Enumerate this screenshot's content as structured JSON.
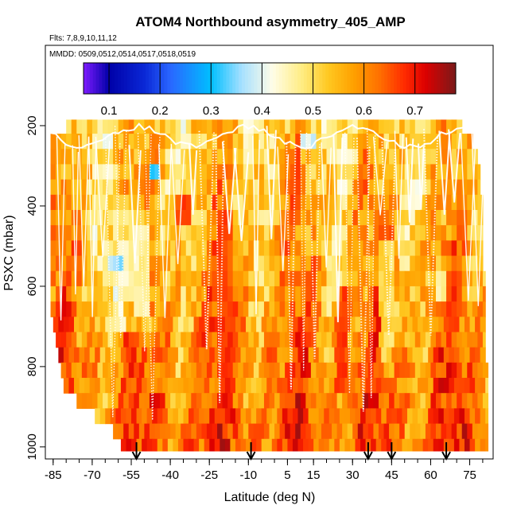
{
  "chart_data": {
    "type": "heatmap",
    "title": "ATOM4 Northbound asymmetry_405_AMP",
    "subtitle_flights": "Flts: 7,8,9,10,11,12",
    "subtitle_dates": "MMDD: 0509,0512,0514,0517,0518,0519",
    "xlabel": "Latitude (deg N)",
    "ylabel": "PSXC (mbar)",
    "xlim": [
      -88,
      84
    ],
    "ylim": [
      1030,
      0
    ],
    "x_ticks": [
      -85,
      -70,
      -55,
      -40,
      -25,
      -10,
      5,
      15,
      30,
      45,
      60,
      75
    ],
    "x_tick_labels": [
      "-85",
      "-70",
      "-55",
      "-40",
      "-25",
      "-10",
      "5",
      "15",
      "30",
      "45",
      "60",
      "75"
    ],
    "x_minor_tick_step": 5,
    "y_ticks": [
      200,
      400,
      600,
      800,
      1000
    ],
    "y_tick_labels": [
      "200",
      "400",
      "600",
      "800",
      "1000"
    ],
    "colorbar": {
      "range": [
        0.05,
        0.78
      ],
      "ticks": [
        0.1,
        0.2,
        0.3,
        0.4,
        0.5,
        0.6,
        0.7
      ],
      "tick_labels": [
        "0.1",
        "0.2",
        "0.3",
        "0.4",
        "0.5",
        "0.6",
        "0.7"
      ],
      "stops": [
        {
          "v": 0.05,
          "c": "#7f1cff"
        },
        {
          "v": 0.1,
          "c": "#0000a8"
        },
        {
          "v": 0.17,
          "c": "#0a28d6"
        },
        {
          "v": 0.22,
          "c": "#2a66ff"
        },
        {
          "v": 0.3,
          "c": "#00bfff"
        },
        {
          "v": 0.36,
          "c": "#a6e0ff"
        },
        {
          "v": 0.42,
          "c": "#fffde8"
        },
        {
          "v": 0.48,
          "c": "#ffec80"
        },
        {
          "v": 0.53,
          "c": "#ffc820"
        },
        {
          "v": 0.58,
          "c": "#ffa000"
        },
        {
          "v": 0.63,
          "c": "#ff7000"
        },
        {
          "v": 0.68,
          "c": "#ff2a00"
        },
        {
          "v": 0.72,
          "c": "#dd0000"
        },
        {
          "v": 0.78,
          "c": "#7a1a1a"
        }
      ]
    },
    "pressure_levels": [
      185,
      220,
      258,
      296,
      334,
      372,
      410,
      448,
      486,
      524,
      562,
      600,
      638,
      676,
      714,
      752,
      790,
      828,
      866,
      904,
      942,
      980,
      1010
    ],
    "coverage": {
      "lat_start": [
        -80,
        -86,
        -86,
        -86,
        -86,
        -86,
        -86,
        -86,
        -86,
        -86,
        -86,
        -86,
        -86,
        -85,
        -84,
        -83,
        -82,
        -81,
        -76,
        -69,
        -62,
        -59
      ],
      "lat_end": [
        72,
        76,
        78,
        79,
        79,
        80,
        80,
        80,
        80,
        80,
        81,
        81,
        81,
        81,
        81,
        81,
        82,
        82,
        82,
        82,
        82,
        82
      ]
    },
    "features": [
      {
        "lat": -52,
        "plow": 440,
        "phigh": 660,
        "value": 0.4
      },
      {
        "lat": -58,
        "plow": 480,
        "phigh": 620,
        "value": 0.43
      },
      {
        "lat": -47,
        "plow": 290,
        "phigh": 330,
        "value": 0.16
      },
      {
        "lat": -36,
        "plow": 380,
        "phigh": 430,
        "value": 0.74
      },
      {
        "lat": -20,
        "plow": 420,
        "phigh": 900,
        "value": 0.7
      },
      {
        "lat": 25,
        "plow": 600,
        "phigh": 880,
        "value": 0.71
      },
      {
        "lat": 42,
        "plow": 500,
        "phigh": 800,
        "value": 0.45
      },
      {
        "lat": 12,
        "plow": 220,
        "phigh": 250,
        "value": 0.3
      },
      {
        "lat": -62,
        "plow": 520,
        "phigh": 560,
        "value": 0.3
      },
      {
        "lat": 63,
        "plow": 560,
        "phigh": 620,
        "value": 0.4
      }
    ],
    "profile_arrows_lat": [
      -53,
      -9,
      36,
      45,
      66
    ],
    "seed": 7
  }
}
